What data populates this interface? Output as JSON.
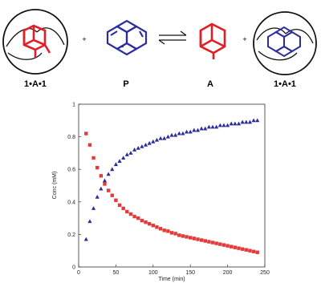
{
  "scheme": {
    "labels": {
      "complex_left": "1•A•1",
      "guest_p": "P",
      "guest_a": "A",
      "complex_right": "1•A•1"
    },
    "plus_sign": "+",
    "colors": {
      "adamantane": "#e01f26",
      "pyrene": "#2b2d9e",
      "capsule": "#111111"
    },
    "icons": [
      "capsule-with-adamantane-icon",
      "pyrene-icon",
      "equilibrium-arrows-icon",
      "adamantane-icon",
      "capsule-with-pyrene-icon"
    ]
  },
  "chart_data": {
    "type": "scatter",
    "xlabel": "Time (min)",
    "ylabel": "Conc (mM)",
    "xlim": [
      0,
      250
    ],
    "ylim": [
      0,
      1
    ],
    "xticks": [
      "0",
      "50",
      "100",
      "150",
      "200",
      "250"
    ],
    "yticks": [
      "0",
      "0.2",
      "0.4",
      "0.6",
      "0.8",
      "1"
    ],
    "grid": false,
    "series": [
      {
        "marker": "square",
        "color": "#e33b3b",
        "x": [
          10,
          15,
          20,
          25,
          30,
          35,
          40,
          45,
          50,
          55,
          60,
          65,
          70,
          75,
          80,
          85,
          90,
          95,
          100,
          105,
          110,
          115,
          120,
          125,
          130,
          135,
          140,
          145,
          150,
          155,
          160,
          165,
          170,
          175,
          180,
          185,
          190,
          195,
          200,
          205,
          210,
          215,
          220,
          225,
          230,
          235,
          240
        ],
        "y": [
          0.82,
          0.75,
          0.67,
          0.61,
          0.56,
          0.51,
          0.47,
          0.44,
          0.41,
          0.38,
          0.36,
          0.34,
          0.325,
          0.31,
          0.3,
          0.285,
          0.275,
          0.265,
          0.255,
          0.245,
          0.235,
          0.225,
          0.22,
          0.21,
          0.205,
          0.195,
          0.19,
          0.185,
          0.18,
          0.175,
          0.17,
          0.165,
          0.16,
          0.155,
          0.15,
          0.145,
          0.14,
          0.135,
          0.13,
          0.125,
          0.12,
          0.115,
          0.11,
          0.105,
          0.1,
          0.095,
          0.09
        ]
      },
      {
        "marker": "triangle",
        "color": "#2b2d9e",
        "x": [
          10,
          15,
          20,
          25,
          30,
          35,
          40,
          45,
          50,
          55,
          60,
          65,
          70,
          75,
          80,
          85,
          90,
          95,
          100,
          105,
          110,
          115,
          120,
          125,
          130,
          135,
          140,
          145,
          150,
          155,
          160,
          165,
          170,
          175,
          180,
          185,
          190,
          195,
          200,
          205,
          210,
          215,
          220,
          225,
          230,
          235,
          240
        ],
        "y": [
          0.17,
          0.28,
          0.36,
          0.43,
          0.48,
          0.53,
          0.57,
          0.6,
          0.63,
          0.65,
          0.67,
          0.69,
          0.7,
          0.72,
          0.73,
          0.74,
          0.75,
          0.76,
          0.77,
          0.78,
          0.79,
          0.79,
          0.8,
          0.81,
          0.81,
          0.82,
          0.82,
          0.83,
          0.83,
          0.84,
          0.84,
          0.85,
          0.85,
          0.86,
          0.86,
          0.86,
          0.87,
          0.87,
          0.87,
          0.88,
          0.88,
          0.88,
          0.89,
          0.89,
          0.89,
          0.9,
          0.9
        ]
      }
    ]
  }
}
